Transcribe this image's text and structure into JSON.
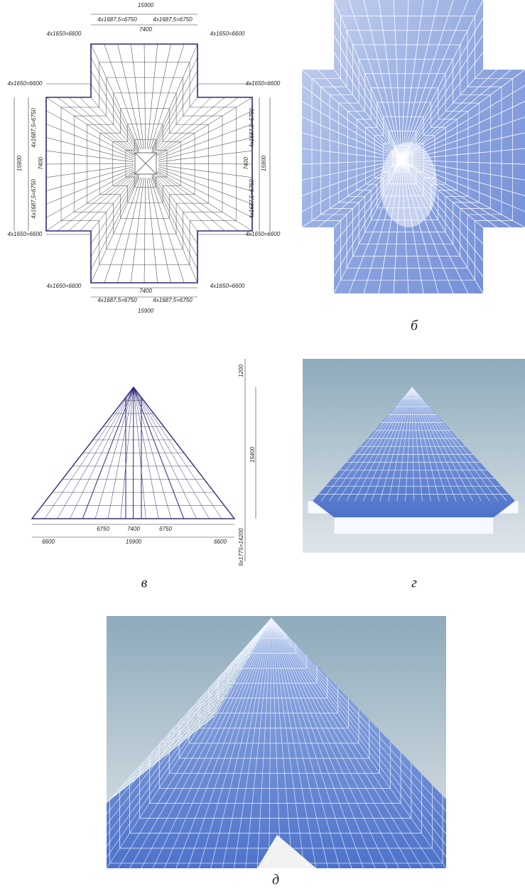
{
  "plan": {
    "labels": [
      "15900",
      "4x1687,5=6750",
      "4x1687,5=6750",
      "7400",
      "4x1650=6600",
      "4x1650=6600",
      "4x1650=6600",
      "4x1650=6600",
      "4x1650=6600",
      "4x1650=6600",
      "4x1650=6600",
      "4x1650=6600",
      "7400",
      "4x1687,5=6750",
      "4x1687,5=6750",
      "15900",
      "15900",
      "4x1687,5=6750",
      "4x1687,5=6750",
      "7400",
      "15900",
      "4x1687,5=6750",
      "4x1687,5=6750",
      "7400"
    ]
  },
  "elevation": {
    "labels": [
      "1200",
      "15400",
      "9x1775=14200",
      "6750",
      "7400",
      "6750",
      "6600",
      "15900",
      "6600"
    ]
  },
  "captions": {
    "b": "б",
    "v": "в",
    "g": "г",
    "d": "д"
  }
}
